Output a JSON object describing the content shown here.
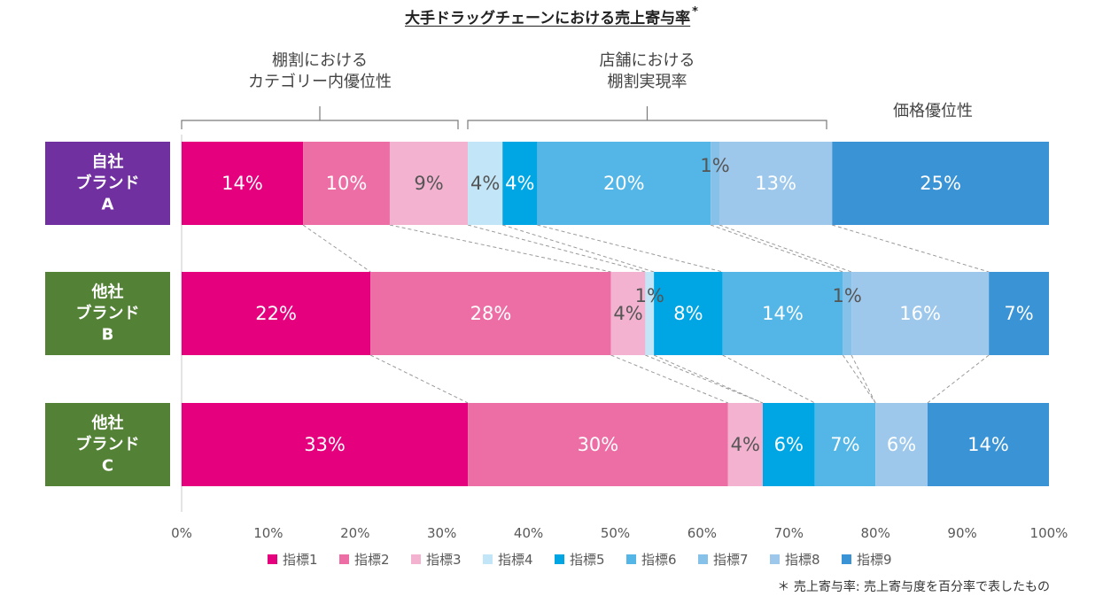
{
  "title": "大手ドラッグチェーンにおける売上寄与率",
  "title_mark": "*",
  "group_labels": {
    "g1": {
      "line1": "棚割における",
      "line2": "カテゴリー内優位性"
    },
    "g2": {
      "line1": "店舗における",
      "line2": "棚割実現率"
    },
    "g3": {
      "line1": "価格優位性"
    }
  },
  "footnote": "＊ 売上寄与率: 売上寄与度を百分率で表したもの",
  "chart_data": {
    "type": "bar",
    "orientation": "horizontal",
    "stacked": true,
    "title": "大手ドラッグチェーンにおける売上寄与率",
    "xlim": [
      0,
      100
    ],
    "x_ticks": [
      "0%",
      "10%",
      "20%",
      "30%",
      "40%",
      "50%",
      "60%",
      "70%",
      "80%",
      "90%",
      "100%"
    ],
    "categories": [
      {
        "lines": [
          "自社",
          "ブランド",
          "A"
        ],
        "color": "#7030A0"
      },
      {
        "lines": [
          "他社",
          "ブランド",
          "B"
        ],
        "color": "#538135"
      },
      {
        "lines": [
          "他社",
          "ブランド",
          "C"
        ],
        "color": "#538135"
      }
    ],
    "series": [
      {
        "name": "指標1",
        "color": "#E5007E",
        "values": [
          14,
          22,
          33
        ],
        "labels": [
          "14%",
          "22%",
          "33%"
        ]
      },
      {
        "name": "指標2",
        "color": "#EC6EA5",
        "values": [
          10,
          28,
          30
        ],
        "labels": [
          "10%",
          "28%",
          "30%"
        ]
      },
      {
        "name": "指標3",
        "color": "#F3B3D0",
        "values": [
          9,
          4,
          4
        ],
        "labels": [
          "9%",
          "4%",
          "4%"
        ]
      },
      {
        "name": "指標4",
        "color": "#C2E6F7",
        "values": [
          4,
          1,
          0
        ],
        "labels": [
          "4%",
          "1%",
          ""
        ]
      },
      {
        "name": "指標5",
        "color": "#00A6E4",
        "values": [
          4,
          8,
          6
        ],
        "labels": [
          "4%",
          "8%",
          "6%"
        ]
      },
      {
        "name": "指標6",
        "color": "#53B6E6",
        "values": [
          20,
          14,
          7
        ],
        "labels": [
          "20%",
          "14%",
          "7%"
        ]
      },
      {
        "name": "指標7",
        "color": "#86C1EA",
        "values": [
          1,
          1,
          0
        ],
        "labels": [
          "1%",
          "1%",
          ""
        ]
      },
      {
        "name": "指標8",
        "color": "#9DC8EC",
        "values": [
          13,
          16,
          6
        ],
        "labels": [
          "13%",
          "16%",
          "6%"
        ]
      },
      {
        "name": "指標9",
        "color": "#3A93D5",
        "values": [
          25,
          7,
          14
        ],
        "labels": [
          "25%",
          "7%",
          "14%"
        ]
      }
    ],
    "legend_position": "bottom"
  }
}
